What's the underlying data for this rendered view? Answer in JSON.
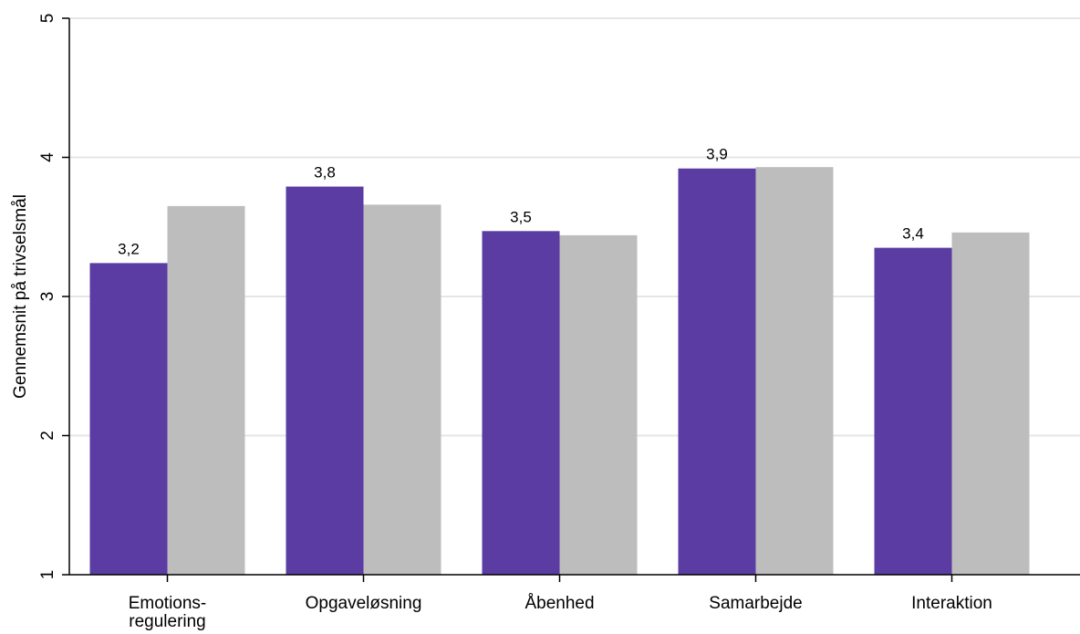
{
  "colors": {
    "series_primary": "#5a3ca3",
    "series_secondary": "#bdbdbd",
    "grid": "#e6e6e6",
    "axis": "#000000"
  },
  "chart_data": {
    "type": "bar",
    "title": "",
    "xlabel": "",
    "ylabel": "Gennemsnit på trivselsmål",
    "ylim": [
      1,
      5
    ],
    "yticks": [
      "1",
      "2",
      "3",
      "4",
      "5"
    ],
    "grid": true,
    "legend": "none",
    "categories": [
      [
        "Emotions-",
        "regulering"
      ],
      [
        "Opgaveløsning"
      ],
      [
        "Åbenhed"
      ],
      [
        "Samarbejde"
      ],
      [
        "Interaktion"
      ]
    ],
    "series": [
      {
        "values": [
          3.24,
          3.79,
          3.47,
          3.92,
          3.35
        ],
        "labels": [
          "3,2",
          "3,8",
          "3,5",
          "3,9",
          "3,4"
        ],
        "color": "#5a3ca3"
      },
      {
        "values": [
          3.65,
          3.66,
          3.44,
          3.93,
          3.46
        ],
        "labels": [],
        "color": "#bdbdbd"
      }
    ]
  }
}
